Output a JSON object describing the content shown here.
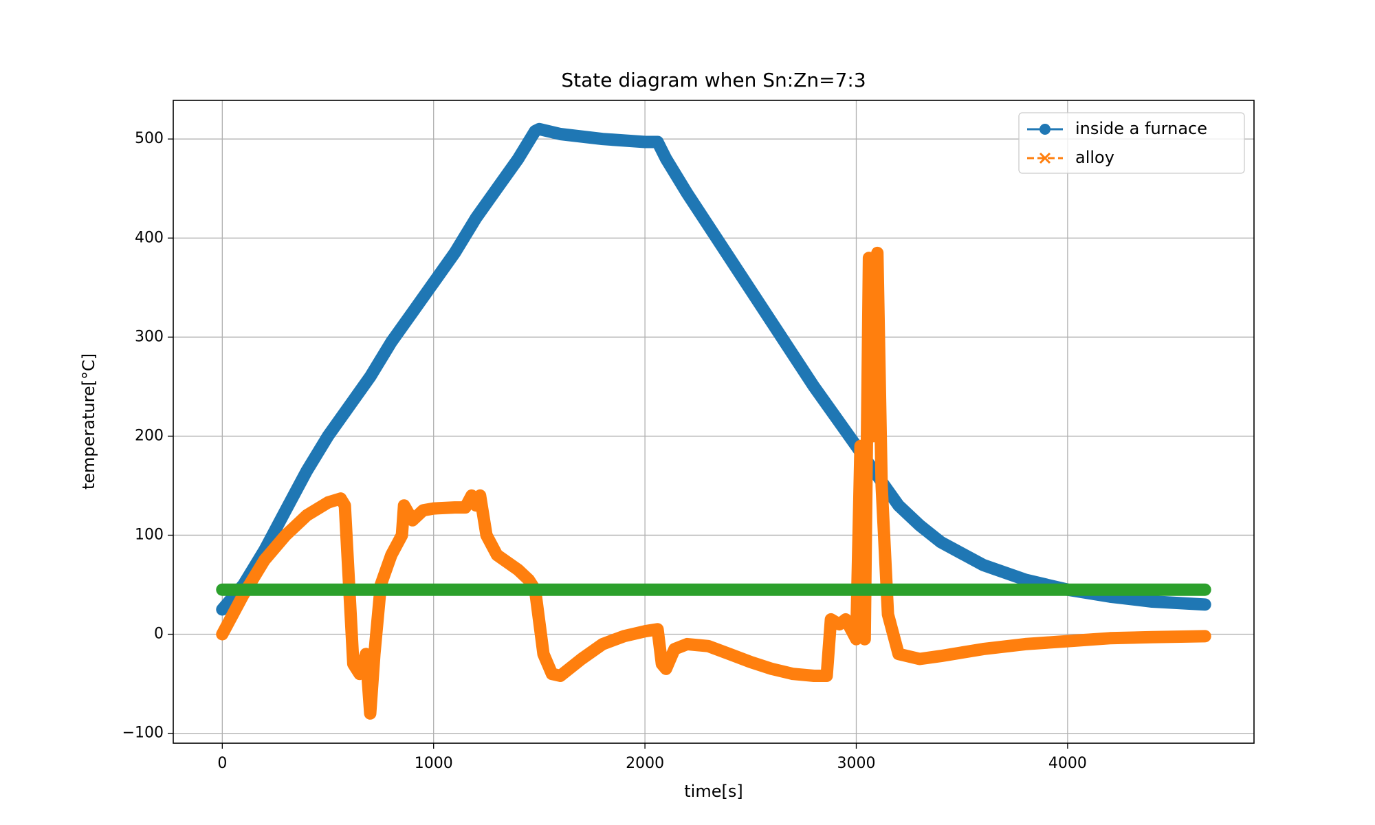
{
  "chart_data": {
    "type": "line",
    "title": "State diagram when Sn:Zn=7:3",
    "xlabel": "time[s]",
    "ylabel": "temperature[°C]",
    "xlim": [
      -232,
      4882
    ],
    "ylim": [
      -110,
      539
    ],
    "xticks": [
      0,
      1000,
      2000,
      3000,
      4000
    ],
    "yticks": [
      {
        "value": -100,
        "label": "−100"
      },
      0,
      100,
      200,
      300,
      400,
      500
    ],
    "grid": true,
    "legend": "upper right",
    "series": [
      {
        "name": "inside a furnace",
        "color": "#1f77b4",
        "marker": "o",
        "linestyle": "solid",
        "x": [
          0,
          100,
          200,
          300,
          400,
          500,
          600,
          700,
          800,
          900,
          1000,
          1100,
          1200,
          1300,
          1400,
          1480,
          1500,
          1600,
          1800,
          2000,
          2060,
          2100,
          2200,
          2400,
          2600,
          2800,
          2900,
          3000,
          3100,
          3200,
          3300,
          3400,
          3600,
          3800,
          4000,
          4200,
          4400,
          4650
        ],
        "values": [
          25,
          50,
          85,
          125,
          165,
          200,
          230,
          260,
          295,
          325,
          355,
          385,
          420,
          450,
          480,
          508,
          510,
          505,
          500,
          497,
          497,
          480,
          445,
          380,
          315,
          250,
          220,
          190,
          160,
          130,
          110,
          93,
          70,
          55,
          45,
          38,
          33,
          30
        ]
      },
      {
        "name": "alloy",
        "color": "#ff7f0e",
        "marker": "x",
        "linestyle": "dashed",
        "x": [
          0,
          100,
          200,
          300,
          400,
          500,
          560,
          580,
          620,
          650,
          680,
          700,
          720,
          750,
          800,
          850,
          860,
          900,
          950,
          1000,
          1100,
          1150,
          1180,
          1200,
          1220,
          1250,
          1300,
          1400,
          1450,
          1480,
          1520,
          1560,
          1600,
          1700,
          1800,
          1900,
          2000,
          2060,
          2080,
          2100,
          2140,
          2200,
          2300,
          2400,
          2500,
          2600,
          2700,
          2800,
          2860,
          2880,
          2920,
          2950,
          3000,
          3020,
          3040,
          3060,
          3080,
          3100,
          3120,
          3150,
          3200,
          3300,
          3400,
          3600,
          3800,
          4000,
          4200,
          4400,
          4650
        ],
        "values": [
          0,
          40,
          75,
          100,
          120,
          133,
          137,
          130,
          -30,
          -40,
          -20,
          -80,
          -20,
          50,
          80,
          100,
          130,
          115,
          125,
          127,
          128,
          128,
          140,
          130,
          140,
          100,
          80,
          65,
          55,
          45,
          -20,
          -40,
          -42,
          -25,
          -10,
          -2,
          3,
          5,
          -30,
          -35,
          -15,
          -10,
          -12,
          -20,
          -28,
          -35,
          -40,
          -42,
          -42,
          15,
          10,
          15,
          -5,
          190,
          -5,
          380,
          200,
          385,
          150,
          20,
          -20,
          -25,
          -22,
          -15,
          -10,
          -7,
          -4,
          -3,
          -2
        ]
      },
      {
        "color": "#2ca02c",
        "x": [
          0,
          4650
        ],
        "values": [
          45,
          45
        ]
      }
    ]
  }
}
